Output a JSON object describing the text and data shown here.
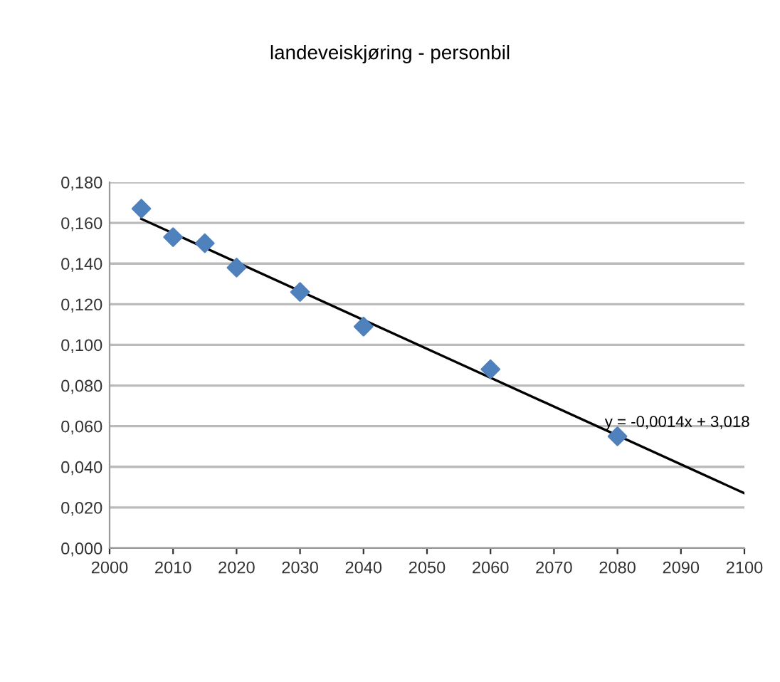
{
  "chart_data": {
    "type": "scatter",
    "title": "landeveiskjøring - personbil",
    "x": [
      2005,
      2010,
      2015,
      2020,
      2030,
      2040,
      2060,
      2080
    ],
    "series": [
      {
        "color": "#4f81bd",
        "marker": "diamond",
        "values": [
          0.167,
          0.153,
          0.15,
          0.138,
          0.126,
          0.109,
          0.088,
          0.055
        ]
      },
      {
        "type": "line",
        "color": "#000000",
        "marker": "none",
        "line_style": "solid",
        "x": [
          2005,
          2100
        ],
        "values": [
          0.162,
          0.027
        ]
      }
    ],
    "xlim": [
      2000,
      2100
    ],
    "xticks": [
      2000,
      2010,
      2020,
      2030,
      2040,
      2050,
      2060,
      2070,
      2080,
      2090,
      2100
    ],
    "ylim": [
      0,
      0.18
    ],
    "yticks": [
      {
        "value": 0,
        "label": "0,000"
      },
      {
        "value": 0.02,
        "label": "0,020"
      },
      {
        "value": 0.04,
        "label": "0,040"
      },
      {
        "value": 0.06,
        "label": "0,060"
      },
      {
        "value": 0.08,
        "label": "0,080"
      },
      {
        "value": 0.1,
        "label": "0,100"
      },
      {
        "value": 0.12,
        "label": "0,120"
      },
      {
        "value": 0.14,
        "label": "0,140"
      },
      {
        "value": 0.16,
        "label": "0,160"
      },
      {
        "value": 0.18,
        "label": "0,180"
      }
    ],
    "grid": "y",
    "annotations": [
      {
        "text": "y = -0,0014x + 3,018",
        "x": 2078,
        "y": 0.058
      }
    ]
  }
}
